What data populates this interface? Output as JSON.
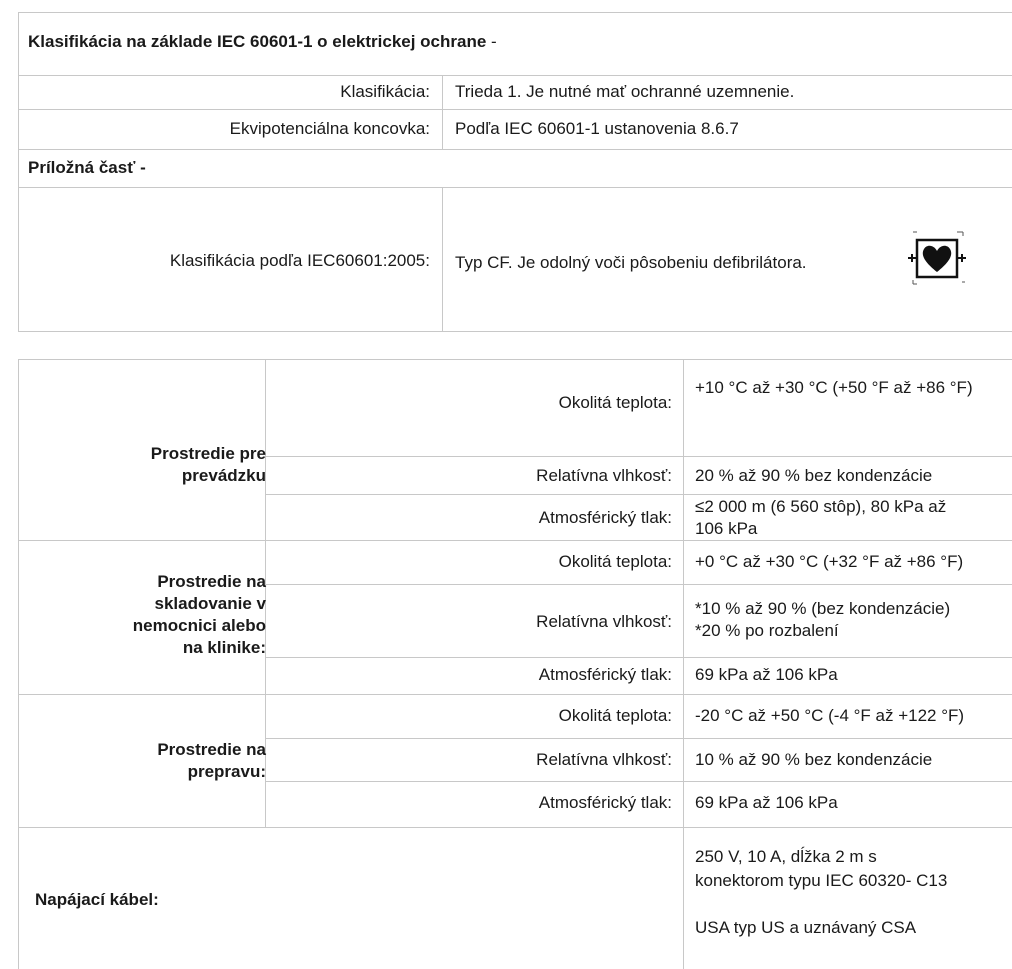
{
  "table1": {
    "header_bold": "Klasifikácia na základe IEC 60601-1 o elektrickej ochrane",
    "header_suffix": " -",
    "rows": [
      {
        "label": "Klasifikácia:",
        "value": "Trieda 1. Je nutné mať ochranné uzemnenie."
      },
      {
        "label": "Ekvipotenciálna koncovka:",
        "value": "Podľa IEC 60601-1 ustanovenia 8.6.7"
      }
    ],
    "subheader": "Príložná časť -",
    "applied_part": {
      "label": "Klasifikácia podľa IEC60601:2005:",
      "value": "Typ CF. Je odolný voči pôsobeniu defibrilátora.",
      "icon": "defibrillation-proof-cf-heart-icon"
    }
  },
  "table2": {
    "groups": [
      {
        "title": [
          "Prostredie pre",
          "prevádzku"
        ],
        "rows": [
          {
            "label": "Okolitá teplota:",
            "value": [
              "+10 °C až +30 °C (+50 °F až +86 °F)"
            ]
          },
          {
            "label": "Relatívna vlhkosť:",
            "value": [
              "20 % až 90 % bez kondenzácie"
            ]
          },
          {
            "label": "Atmosférický tlak:",
            "value": [
              "≤2 000 m (6 560 stôp), 80 kPa až",
              "106 kPa"
            ]
          }
        ]
      },
      {
        "title": [
          "Prostredie na",
          "skladovanie v",
          "nemocnici alebo",
          "na klinike:"
        ],
        "rows": [
          {
            "label": "Okolitá teplota:",
            "value": [
              "+0 °C až +30 °C (+32 °F až +86 °F)"
            ]
          },
          {
            "label": "Relatívna vlhkosť:",
            "value": [
              "*10 % až 90 % (bez kondenzácie)",
              "*20 % po rozbalení"
            ]
          },
          {
            "label": "Atmosférický tlak:",
            "value": [
              "69 kPa až 106 kPa"
            ]
          }
        ]
      },
      {
        "title": [
          "Prostredie na",
          "prepravu:"
        ],
        "rows": [
          {
            "label": "Okolitá teplota:",
            "value": [
              "-20 °C až +50 °C (-4 °F až +122 °F)"
            ]
          },
          {
            "label": "Relatívna vlhkosť:",
            "value": [
              "10 % až 90 % bez kondenzácie"
            ]
          },
          {
            "label": "Atmosférický tlak:",
            "value": [
              "69 kPa až 106 kPa"
            ]
          }
        ]
      }
    ],
    "power_cable": {
      "title": "Napájací kábel:",
      "value": [
        "250 V, 10 A, dĺžka 2 m s",
        "konektorom typu IEC 60320- C13",
        "USA typ US a uznávaný CSA"
      ]
    }
  }
}
